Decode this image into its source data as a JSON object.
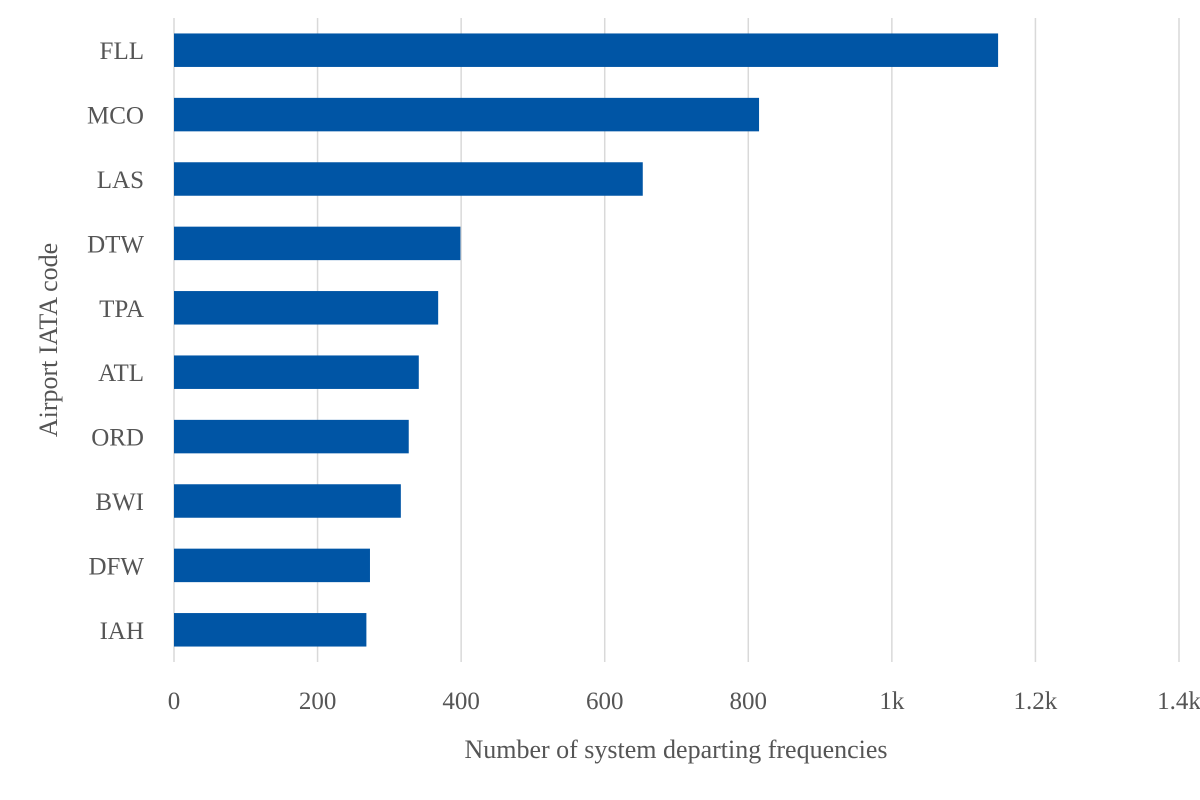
{
  "chart_data": {
    "type": "bar",
    "orientation": "horizontal",
    "title": "",
    "xlabel": "Number of system departing frequencies",
    "ylabel": "Airport IATA code",
    "categories": [
      "FLL",
      "MCO",
      "LAS",
      "DTW",
      "TPA",
      "ATL",
      "ORD",
      "BWI",
      "DFW",
      "IAH"
    ],
    "values": [
      1148,
      815,
      653,
      399,
      368,
      341,
      327,
      316,
      273,
      268
    ],
    "xlim": [
      0,
      1400
    ],
    "xticks": [
      0,
      200,
      400,
      600,
      800,
      1000,
      1200,
      1400
    ],
    "xtick_labels": [
      "0",
      "200",
      "400",
      "600",
      "800",
      "1k",
      "1.2k",
      "1.4k"
    ],
    "grid": "vertical",
    "legend": "none",
    "bar_color": "#0055a5"
  }
}
